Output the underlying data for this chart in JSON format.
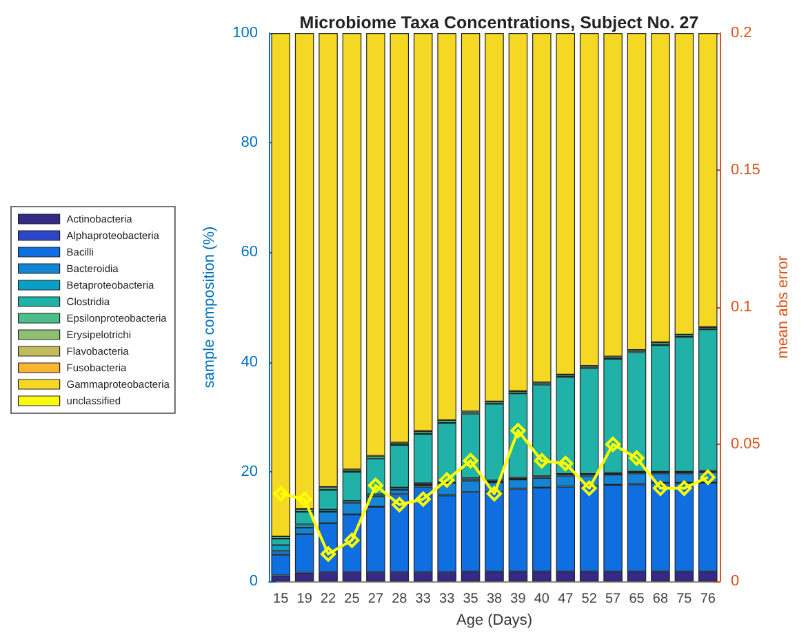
{
  "chart_data": {
    "type": "bar",
    "stacked": true,
    "title": "Microbiome Taxa Concentrations, Subject No. 27",
    "xlabel": "Age (Days)",
    "ylabel": "sample composition (%)",
    "y2label": "mean abs error",
    "categories": [
      "15",
      "19",
      "22",
      "25",
      "27",
      "28",
      "33",
      "33",
      "35",
      "38",
      "39",
      "40",
      "47",
      "52",
      "57",
      "65",
      "68",
      "75",
      "76"
    ],
    "ylim": [
      0,
      100
    ],
    "yticks": [
      0,
      20,
      40,
      60,
      80,
      100
    ],
    "y2lim": [
      0,
      0.2
    ],
    "y2ticks": [
      0,
      0.05,
      0.1,
      0.15,
      0.2
    ],
    "grid": false,
    "legend": "left",
    "series": [
      {
        "name": "Actinobacteria",
        "color": "#352a87",
        "values": [
          1.1,
          1.6,
          1.7,
          1.7,
          1.7,
          1.7,
          1.7,
          1.7,
          1.8,
          1.8,
          1.8,
          1.8,
          1.8,
          1.8,
          1.8,
          1.8,
          1.8,
          1.8,
          1.8
        ]
      },
      {
        "name": "Alphaproteobacteria",
        "color": "#2d45c9",
        "values": [
          0,
          0,
          0,
          0,
          0,
          0,
          0,
          0,
          0,
          0,
          0,
          0,
          0,
          0,
          0,
          0,
          0,
          0,
          0
        ]
      },
      {
        "name": "Bacilli",
        "color": "#0f6fe0",
        "values": [
          3.8,
          7.0,
          8.9,
          10.5,
          11.9,
          14.2,
          15.6,
          14.0,
          14.5,
          14.5,
          15.1,
          15.3,
          15.5,
          15.6,
          15.8,
          15.9,
          16.2,
          16.2,
          16.2
        ]
      },
      {
        "name": "Bacteroidia",
        "color": "#1485d4",
        "values": [
          0.6,
          1.2,
          2.1,
          2.1,
          1.9,
          0.8,
          0.3,
          2.3,
          2.1,
          1.8,
          1.7,
          1.8,
          2.0,
          1.9,
          1.9,
          2.0,
          1.7,
          1.7,
          1.9
        ]
      },
      {
        "name": "Betaproteobacteria",
        "color": "#08a0c6",
        "values": [
          1.1,
          0.6,
          0.4,
          0.4,
          0.4,
          0.4,
          0.3,
          null,
          0.4,
          0.3,
          0.3,
          0.3,
          0.3,
          0.3,
          0.3,
          0.3,
          0.3,
          0.3,
          0.3
        ]
      },
      {
        "name": "Clostridia",
        "color": "#20b2a8",
        "values": [
          1.2,
          2.3,
          3.6,
          5.3,
          6.5,
          7.8,
          9.0,
          10.9,
          11.8,
          14.0,
          15.4,
          16.7,
          17.7,
          19.3,
          20.8,
          21.8,
          23.1,
          24.6,
          25.8
        ]
      },
      {
        "name": "Epsilonproteobacteria",
        "color": "#4cbe8c",
        "values": [
          0.4,
          0.5,
          0.5,
          0.4,
          0.5,
          0.4,
          0.5,
          0.5,
          0.4,
          0.4,
          0.4,
          0.4,
          0.4,
          0.4,
          0.4,
          0.4,
          0.5,
          0.4,
          0.4
        ]
      },
      {
        "name": "Erysipelotrichi",
        "color": "#8fbf72",
        "values": [
          0,
          0,
          0,
          0,
          0,
          0,
          0,
          0,
          0,
          0,
          0,
          0,
          0,
          0,
          0,
          0,
          0,
          0,
          0
        ]
      },
      {
        "name": "Flavobacteria",
        "color": "#c4bb5c",
        "values": [
          0,
          0,
          0,
          0,
          0,
          0,
          0,
          0,
          0,
          0,
          0,
          0,
          0,
          0,
          0,
          0,
          0,
          0,
          0
        ]
      },
      {
        "name": "Fusobacteria",
        "color": "#fbb535",
        "values": [
          0,
          0,
          0,
          0,
          0,
          0,
          0,
          0,
          0,
          0,
          0,
          0,
          0,
          0,
          0,
          0,
          0,
          0,
          0
        ]
      },
      {
        "name": "Gammaproteobacteria",
        "color": "#f5d823",
        "values": [
          91.8,
          86.8,
          82.8,
          79.6,
          77.1,
          74.7,
          72.6,
          70.6,
          69.0,
          67.2,
          65.3,
          63.7,
          62.3,
          60.7,
          59.0,
          57.8,
          56.4,
          55.0,
          53.6
        ]
      },
      {
        "name": "unclassified",
        "color": "#f9fb0e",
        "values": [
          0,
          0,
          0,
          0,
          0,
          0,
          0,
          0,
          0,
          0,
          0,
          0,
          0,
          0,
          0,
          0,
          0,
          0,
          0
        ]
      },
      {
        "type": "line",
        "axis": "y2",
        "marker": "diamond",
        "color": "#ffff00",
        "values": [
          0.032,
          0.03,
          0.01,
          0.015,
          0.035,
          0.028,
          0.03,
          0.037,
          0.044,
          0.032,
          0.055,
          0.044,
          0.043,
          0.034,
          0.05,
          0.045,
          0.034,
          0.034,
          0.038
        ]
      }
    ]
  }
}
